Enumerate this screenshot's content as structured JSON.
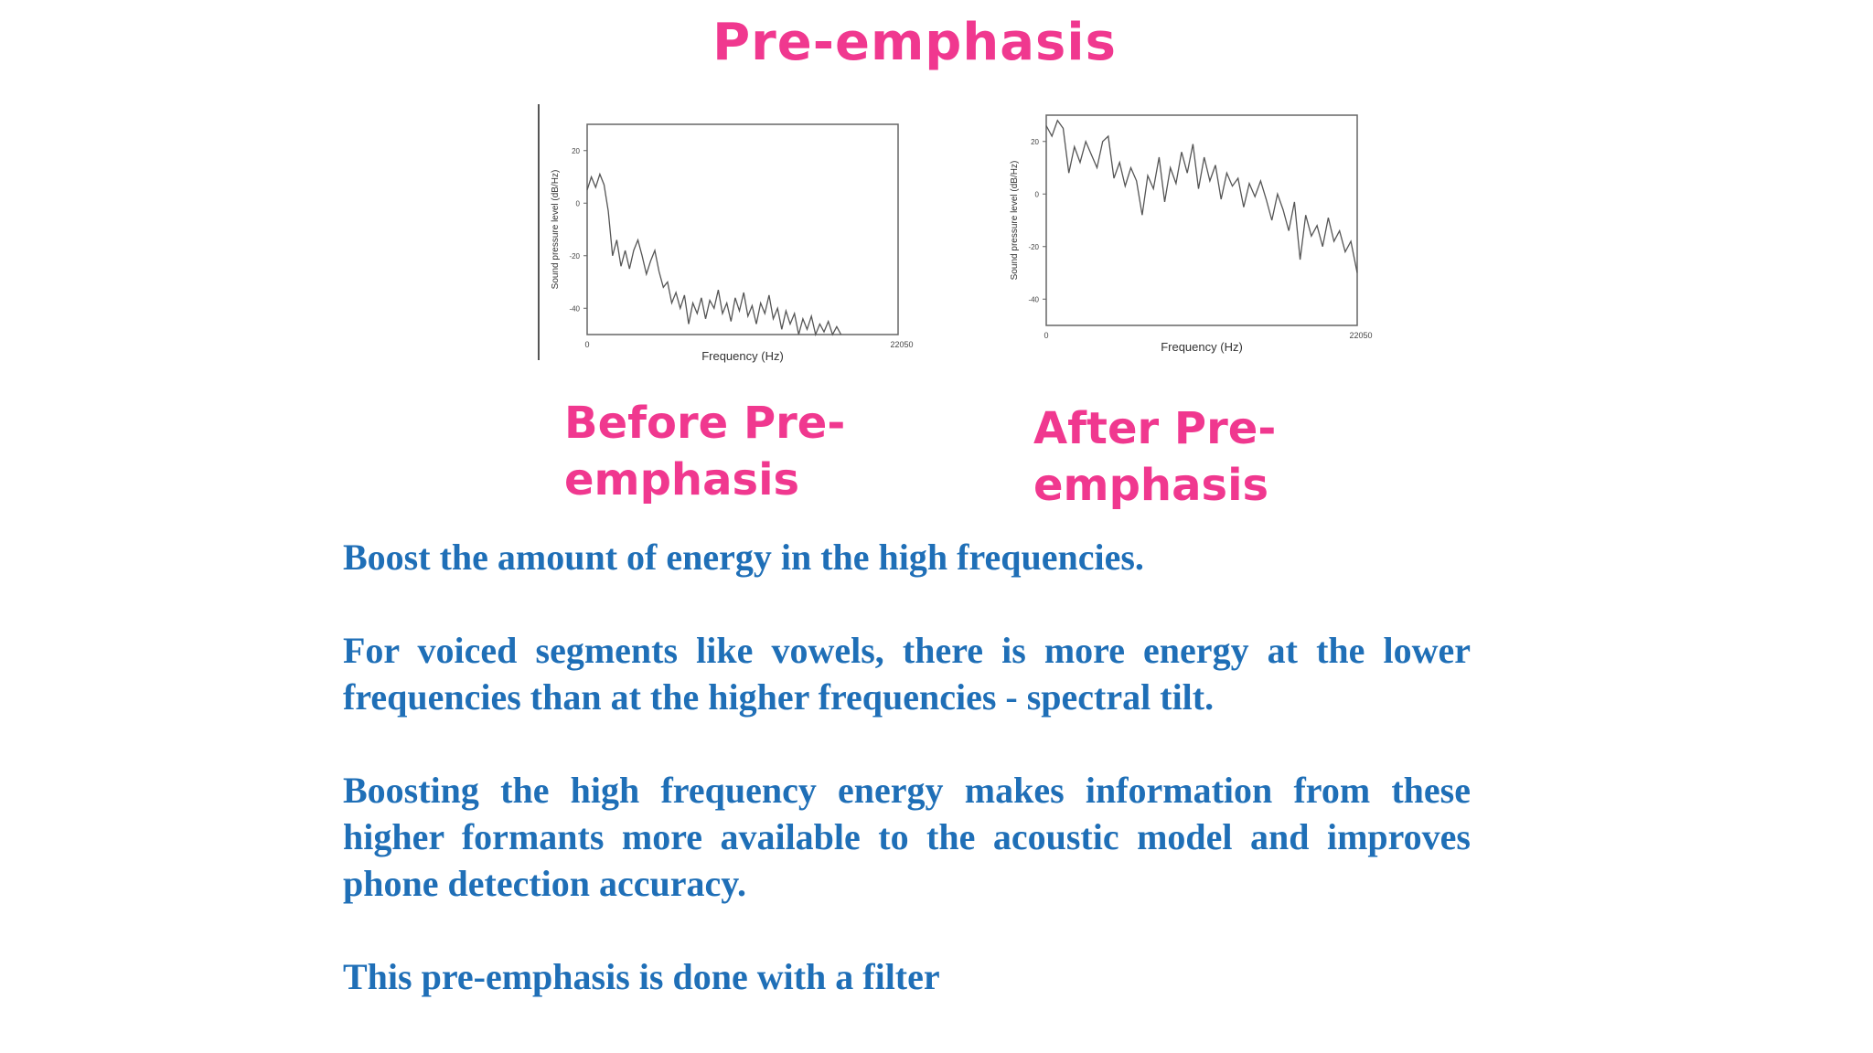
{
  "slide": {
    "title": "Pre-emphasis",
    "before_label": "Before Pre-\nemphasis",
    "after_label": "After Pre-\nemphasis",
    "paragraphs": [
      "Boost the amount of energy in the high frequencies.",
      "For voiced segments like vowels, there is more energy at the lower frequencies than at the higher frequencies - spectral tilt.",
      "Boosting the high frequency energy makes information from these higher formants more available to the acoustic model and improves phone detection accuracy.",
      "This pre-emphasis is done with a filter"
    ]
  },
  "colors": {
    "accent_pink": "#f0388f",
    "body_blue": "#1f6fb7",
    "plot_line": "#555555"
  },
  "chart_data": [
    {
      "type": "line",
      "xlabel": "Frequency (Hz)",
      "ylabel": "Sound pressure level (dB/Hz)",
      "xlim": [
        0,
        22050
      ],
      "ylim": [
        -50,
        30
      ],
      "x_ticks": [
        "0",
        "22050"
      ],
      "y_ticks": [
        20,
        0,
        -20,
        -40
      ],
      "x": [
        0,
        300,
        600,
        900,
        1200,
        1500,
        1800,
        2100,
        2400,
        2700,
        3000,
        3300,
        3600,
        3900,
        4200,
        4500,
        4800,
        5100,
        5400,
        5700,
        6000,
        6300,
        6600,
        6900,
        7200,
        7500,
        7800,
        8100,
        8400,
        8700,
        9000,
        9300,
        9600,
        9900,
        10200,
        10500,
        10800,
        11100,
        11400,
        11700,
        12000,
        12300,
        12600,
        12900,
        13200,
        13500,
        13800,
        14100,
        14400,
        14700,
        15000,
        15300,
        15600,
        15900,
        16200,
        16500,
        16800,
        17100,
        17400,
        17700,
        18000
      ],
      "series": [
        {
          "values": [
            5,
            10,
            6,
            11,
            7,
            -3,
            -20,
            -14,
            -24,
            -18,
            -25,
            -18,
            -14,
            -20,
            -27,
            -22,
            -18,
            -26,
            -32,
            -30,
            -38,
            -34,
            -40,
            -35,
            -46,
            -38,
            -42,
            -36,
            -44,
            -37,
            -40,
            -33,
            -42,
            -38,
            -45,
            -36,
            -41,
            -34,
            -43,
            -39,
            -46,
            -38,
            -42,
            -35,
            -44,
            -40,
            -48,
            -41,
            -46,
            -42,
            -50,
            -44,
            -48,
            -43,
            -50,
            -46,
            -49,
            -45,
            -50,
            -47,
            -50
          ]
        }
      ]
    },
    {
      "type": "line",
      "xlabel": "Frequency (Hz)",
      "ylabel": "Sound pressure level (dB/Hz)",
      "xlim": [
        0,
        22050
      ],
      "ylim": [
        -50,
        30
      ],
      "x_ticks": [
        "0",
        "22050"
      ],
      "y_ticks": [
        20,
        0,
        -20,
        -40
      ],
      "x": [
        0,
        400,
        800,
        1200,
        1600,
        2000,
        2400,
        2800,
        3200,
        3600,
        4000,
        4400,
        4800,
        5200,
        5600,
        6000,
        6400,
        6800,
        7200,
        7600,
        8000,
        8400,
        8800,
        9200,
        9600,
        10000,
        10400,
        10800,
        11200,
        11600,
        12000,
        12400,
        12800,
        13200,
        13600,
        14000,
        14400,
        14800,
        15200,
        15600,
        16000,
        16400,
        16800,
        17200,
        17600,
        18000,
        18400,
        18800,
        19200,
        19600,
        20000,
        20400,
        20800,
        21200,
        21600,
        22050
      ],
      "series": [
        {
          "values": [
            26,
            22,
            28,
            25,
            8,
            18,
            12,
            20,
            15,
            10,
            20,
            22,
            6,
            12,
            3,
            10,
            5,
            -8,
            7,
            2,
            14,
            -3,
            10,
            4,
            16,
            8,
            19,
            2,
            14,
            5,
            11,
            -2,
            8,
            3,
            6,
            -5,
            4,
            -1,
            5,
            -2,
            -10,
            0,
            -6,
            -14,
            -3,
            -25,
            -8,
            -16,
            -12,
            -20,
            -9,
            -18,
            -14,
            -22,
            -18,
            -30
          ]
        }
      ]
    }
  ]
}
